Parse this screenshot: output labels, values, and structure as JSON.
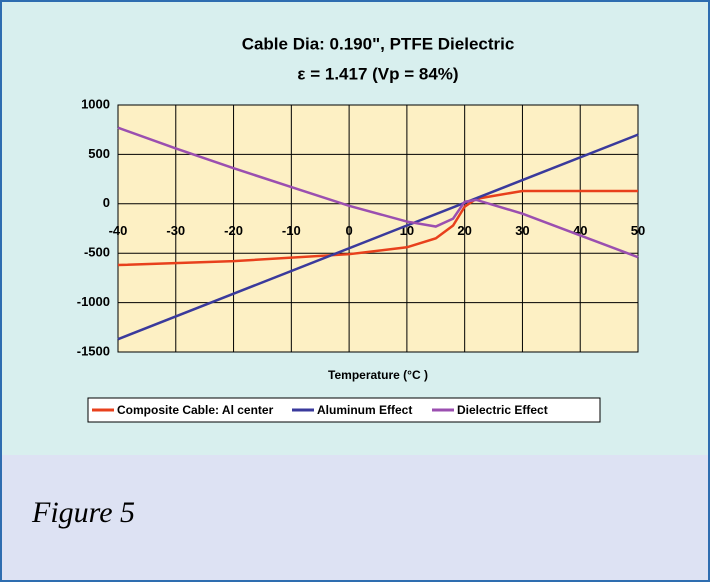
{
  "caption": "Figure 5",
  "chart_data": {
    "type": "line",
    "title": "Cable Dia: 0.190\", PTFE Dielectric",
    "subtitle": "ε = 1.417 (Vp = 84%)",
    "x_label": "Temperature (°C )",
    "xlim": [
      -40,
      50
    ],
    "xticks": [
      -40,
      -30,
      -20,
      -10,
      0,
      10,
      20,
      30,
      40,
      50
    ],
    "ylim": [
      -1500,
      1000
    ],
    "yticks": [
      -1500,
      -1000,
      -500,
      0,
      500,
      1000
    ],
    "grid": true,
    "legend": "bottom",
    "series": [
      {
        "name": "Composite Cable: Al center",
        "color": "#e8401c",
        "x": [
          -40,
          -20,
          0,
          10,
          15,
          18,
          20,
          22,
          25,
          30,
          50
        ],
        "values": [
          -620,
          -580,
          -510,
          -440,
          -350,
          -220,
          -30,
          50,
          80,
          130,
          130
        ]
      },
      {
        "name": "Aluminum Effect",
        "color": "#3a3a9c",
        "x": [
          -40,
          50
        ],
        "values": [
          -1370,
          700
        ]
      },
      {
        "name": "Dielectric Effect",
        "color": "#9b4fb0",
        "x": [
          -40,
          -30,
          -20,
          -10,
          0,
          10,
          15,
          18,
          20,
          22,
          30,
          40,
          50
        ],
        "values": [
          770,
          560,
          360,
          170,
          -20,
          -180,
          -230,
          -150,
          20,
          40,
          -100,
          -320,
          -540
        ]
      }
    ]
  }
}
